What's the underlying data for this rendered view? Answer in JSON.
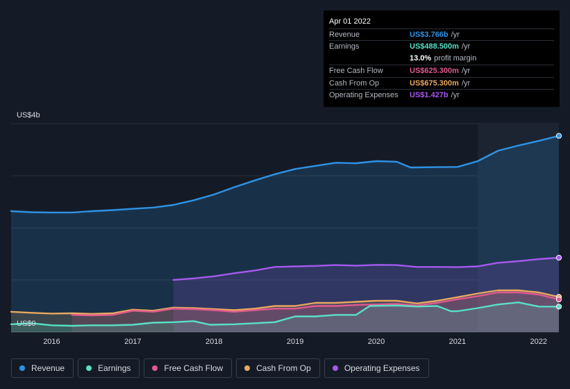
{
  "tooltip": {
    "date": "Apr 01 2022",
    "rows": [
      {
        "label": "Revenue",
        "value": "US$3.766b",
        "unit": "/yr",
        "color": "#2e93e6"
      },
      {
        "label": "Earnings",
        "value": "US$488.500m",
        "unit": "/yr",
        "color": "#59e0c8"
      },
      {
        "extra_value": "13.0%",
        "extra_label": "profit margin"
      },
      {
        "label": "Free Cash Flow",
        "value": "US$625.300m",
        "unit": "/yr",
        "color": "#e05a8e"
      },
      {
        "label": "Cash From Op",
        "value": "US$675.300m",
        "unit": "/yr",
        "color": "#e9a860"
      },
      {
        "label": "Operating Expenses",
        "value": "US$1.427b",
        "unit": "/yr",
        "color": "#a659ee"
      }
    ]
  },
  "y_axis": {
    "top_label": "US$4b",
    "bottom_label": "US$0"
  },
  "legend": [
    {
      "label": "Revenue",
      "color": "#2e93e6"
    },
    {
      "label": "Earnings",
      "color": "#59e0c8"
    },
    {
      "label": "Free Cash Flow",
      "color": "#e05a8e"
    },
    {
      "label": "Cash From Op",
      "color": "#e9a860"
    },
    {
      "label": "Operating Expenses",
      "color": "#a659ee"
    }
  ],
  "chart_data": {
    "type": "area",
    "title": "",
    "xlabel": "",
    "ylabel": "",
    "units": "US$ billions (annualized)",
    "xlim": [
      2015.5,
      2022.25
    ],
    "ylim": [
      0,
      4
    ],
    "x_ticks": [
      2016,
      2017,
      2018,
      2019,
      2020,
      2021,
      2022
    ],
    "x_tick_labels": [
      "2016",
      "2017",
      "2018",
      "2019",
      "2020",
      "2021",
      "2022"
    ],
    "highlight_start": 2021.25,
    "series": [
      {
        "name": "Revenue",
        "color": "#2e93e6",
        "points": [
          [
            2015.5,
            2.32
          ],
          [
            2015.75,
            2.3
          ],
          [
            2016.0,
            2.295
          ],
          [
            2016.25,
            2.295
          ],
          [
            2016.5,
            2.32
          ],
          [
            2016.75,
            2.34
          ],
          [
            2017.0,
            2.365
          ],
          [
            2017.25,
            2.39
          ],
          [
            2017.5,
            2.44
          ],
          [
            2017.75,
            2.53
          ],
          [
            2018.0,
            2.64
          ],
          [
            2018.25,
            2.78
          ],
          [
            2018.5,
            2.91
          ],
          [
            2018.75,
            3.03
          ],
          [
            2019.0,
            3.13
          ],
          [
            2019.25,
            3.19
          ],
          [
            2019.5,
            3.25
          ],
          [
            2019.75,
            3.24
          ],
          [
            2020.0,
            3.28
          ],
          [
            2020.25,
            3.27
          ],
          [
            2020.42,
            3.16
          ],
          [
            2020.5,
            3.16
          ],
          [
            2020.75,
            3.165
          ],
          [
            2021.0,
            3.17
          ],
          [
            2021.25,
            3.28
          ],
          [
            2021.5,
            3.48
          ],
          [
            2021.75,
            3.58
          ],
          [
            2022.0,
            3.67
          ],
          [
            2022.25,
            3.766
          ]
        ]
      },
      {
        "name": "Operating Expenses",
        "color": "#a659ee",
        "points": [
          [
            2017.5,
            1.0
          ],
          [
            2017.75,
            1.03
          ],
          [
            2018.0,
            1.07
          ],
          [
            2018.25,
            1.13
          ],
          [
            2018.5,
            1.18
          ],
          [
            2018.75,
            1.25
          ],
          [
            2019.0,
            1.26
          ],
          [
            2019.25,
            1.27
          ],
          [
            2019.5,
            1.285
          ],
          [
            2019.75,
            1.275
          ],
          [
            2020.0,
            1.29
          ],
          [
            2020.25,
            1.285
          ],
          [
            2020.5,
            1.25
          ],
          [
            2020.75,
            1.25
          ],
          [
            2021.0,
            1.245
          ],
          [
            2021.25,
            1.26
          ],
          [
            2021.5,
            1.33
          ],
          [
            2021.75,
            1.36
          ],
          [
            2022.0,
            1.4
          ],
          [
            2022.25,
            1.427
          ]
        ]
      },
      {
        "name": "Cash From Op",
        "color": "#e9a860",
        "points": [
          [
            2015.5,
            0.39
          ],
          [
            2015.75,
            0.37
          ],
          [
            2016.0,
            0.355
          ],
          [
            2016.25,
            0.36
          ],
          [
            2016.5,
            0.35
          ],
          [
            2016.75,
            0.36
          ],
          [
            2017.0,
            0.43
          ],
          [
            2017.25,
            0.41
          ],
          [
            2017.5,
            0.47
          ],
          [
            2017.75,
            0.46
          ],
          [
            2018.0,
            0.44
          ],
          [
            2018.25,
            0.42
          ],
          [
            2018.5,
            0.45
          ],
          [
            2018.75,
            0.5
          ],
          [
            2019.0,
            0.5
          ],
          [
            2019.25,
            0.56
          ],
          [
            2019.5,
            0.56
          ],
          [
            2019.75,
            0.58
          ],
          [
            2020.0,
            0.6
          ],
          [
            2020.25,
            0.6
          ],
          [
            2020.5,
            0.55
          ],
          [
            2020.75,
            0.6
          ],
          [
            2021.0,
            0.67
          ],
          [
            2021.25,
            0.74
          ],
          [
            2021.5,
            0.8
          ],
          [
            2021.75,
            0.8
          ],
          [
            2022.0,
            0.76
          ],
          [
            2022.25,
            0.6753
          ]
        ]
      },
      {
        "name": "Free Cash Flow",
        "color": "#e05a8e",
        "points": [
          [
            2016.25,
            0.33
          ],
          [
            2016.5,
            0.32
          ],
          [
            2016.75,
            0.33
          ],
          [
            2017.0,
            0.41
          ],
          [
            2017.25,
            0.39
          ],
          [
            2017.5,
            0.45
          ],
          [
            2017.75,
            0.44
          ],
          [
            2018.0,
            0.42
          ],
          [
            2018.25,
            0.39
          ],
          [
            2018.5,
            0.42
          ],
          [
            2018.75,
            0.45
          ],
          [
            2019.0,
            0.45
          ],
          [
            2019.25,
            0.5
          ],
          [
            2019.5,
            0.5
          ],
          [
            2019.75,
            0.52
          ],
          [
            2020.0,
            0.53
          ],
          [
            2020.25,
            0.54
          ],
          [
            2020.5,
            0.51
          ],
          [
            2020.75,
            0.56
          ],
          [
            2021.0,
            0.63
          ],
          [
            2021.25,
            0.69
          ],
          [
            2021.5,
            0.76
          ],
          [
            2021.75,
            0.76
          ],
          [
            2022.0,
            0.72
          ],
          [
            2022.25,
            0.6253
          ]
        ]
      },
      {
        "name": "Earnings",
        "color": "#59e0c8",
        "points": [
          [
            2015.5,
            0.15
          ],
          [
            2015.75,
            0.17
          ],
          [
            2016.0,
            0.13
          ],
          [
            2016.25,
            0.12
          ],
          [
            2016.5,
            0.13
          ],
          [
            2016.75,
            0.13
          ],
          [
            2017.0,
            0.14
          ],
          [
            2017.25,
            0.18
          ],
          [
            2017.5,
            0.19
          ],
          [
            2017.75,
            0.21
          ],
          [
            2017.95,
            0.14
          ],
          [
            2018.25,
            0.15
          ],
          [
            2018.5,
            0.17
          ],
          [
            2018.75,
            0.19
          ],
          [
            2019.0,
            0.3
          ],
          [
            2019.25,
            0.3
          ],
          [
            2019.5,
            0.33
          ],
          [
            2019.75,
            0.33
          ],
          [
            2019.92,
            0.5
          ],
          [
            2020.25,
            0.51
          ],
          [
            2020.5,
            0.49
          ],
          [
            2020.75,
            0.5
          ],
          [
            2020.92,
            0.4
          ],
          [
            2021.0,
            0.4
          ],
          [
            2021.25,
            0.46
          ],
          [
            2021.5,
            0.53
          ],
          [
            2021.75,
            0.57
          ],
          [
            2022.0,
            0.49
          ],
          [
            2022.25,
            0.4885
          ]
        ]
      }
    ]
  }
}
